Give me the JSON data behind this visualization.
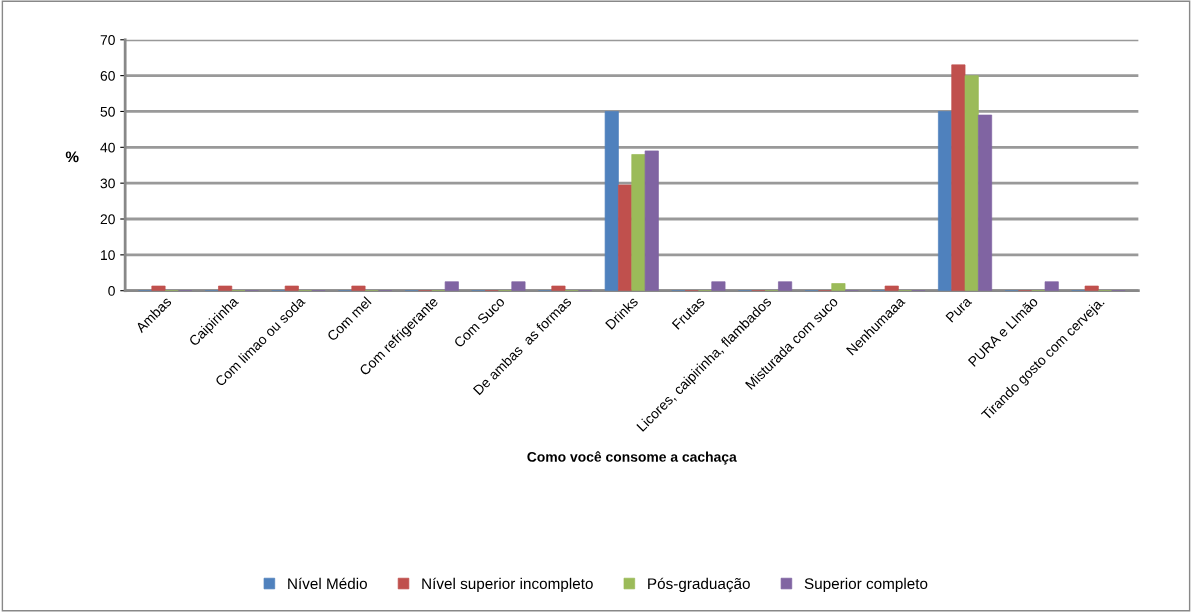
{
  "chart_data": {
    "type": "bar",
    "xlabel": "Como você consome a cachaça",
    "ylabel": "%",
    "categories": [
      "Ambas",
      "Caipirinha",
      "Com limao ou soda",
      "Com mel",
      "Com refrigerante",
      "Com Suco",
      "De ambas  as formas",
      "Drinks",
      "Frutas",
      "Licores, caipirinha, flambados",
      "Misturada com suco",
      "Nenhumaaa",
      "Pura",
      "PURA e LImão",
      "Tirando gosto com cerveja."
    ],
    "series": [
      {
        "name": "Nível Médio",
        "color": "#4f81bd",
        "values": [
          0,
          0,
          0,
          0,
          0,
          0,
          0,
          50,
          0,
          0,
          0,
          0,
          50,
          0,
          0
        ]
      },
      {
        "name": "Nível superior incompleto",
        "color": "#c0504d",
        "values": [
          1.3,
          1.3,
          1.3,
          1.3,
          0,
          0,
          1.3,
          29.5,
          0,
          0,
          0,
          1.3,
          63,
          0,
          1.3
        ]
      },
      {
        "name": "Pós-graduação",
        "color": "#9bbb59",
        "values": [
          0,
          0,
          0,
          0,
          0,
          0,
          0,
          38,
          0,
          0,
          2,
          0,
          60,
          0,
          0
        ]
      },
      {
        "name": "Superior completo",
        "color": "#8064a2",
        "values": [
          0,
          0,
          0,
          0,
          2.5,
          2.5,
          0,
          39,
          2.5,
          2.5,
          0,
          0,
          49,
          2.5,
          0
        ]
      }
    ],
    "ylim": [
      0,
      70
    ],
    "yticks": [
      0,
      10,
      20,
      30,
      40,
      50,
      60,
      70
    ],
    "grid": "y",
    "legend": "bottom"
  }
}
